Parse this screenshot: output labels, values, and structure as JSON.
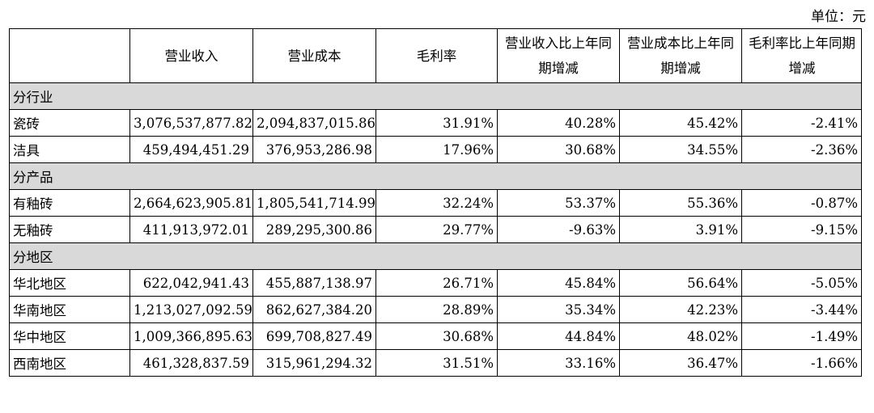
{
  "unit_label": "单位：元",
  "headers": [
    "",
    "营业收入",
    "营业成本",
    "毛利率",
    "营业收入比上年同期增减",
    "营业成本比上年同期增减",
    "毛利率比上年同期增减"
  ],
  "sections": [
    {
      "title": "分行业",
      "rows": [
        {
          "label": "瓷砖",
          "values": [
            "3,076,537,877.82",
            "2,094,837,015.86",
            "31.91%",
            "40.28%",
            "45.42%",
            "-2.41%"
          ]
        },
        {
          "label": "洁具",
          "values": [
            "459,494,451.29",
            "376,953,286.98",
            "17.96%",
            "30.68%",
            "34.55%",
            "-2.36%"
          ]
        }
      ]
    },
    {
      "title": "分产品",
      "rows": [
        {
          "label": "有釉砖",
          "values": [
            "2,664,623,905.81",
            "1,805,541,714.99",
            "32.24%",
            "53.37%",
            "55.36%",
            "-0.87%"
          ]
        },
        {
          "label": "无釉砖",
          "values": [
            "411,913,972.01",
            "289,295,300.86",
            "29.77%",
            "-9.63%",
            "3.91%",
            "-9.15%"
          ]
        }
      ]
    },
    {
      "title": "分地区",
      "rows": [
        {
          "label": "华北地区",
          "values": [
            "622,042,941.43",
            "455,887,138.97",
            "26.71%",
            "45.84%",
            "56.64%",
            "-5.05%"
          ]
        },
        {
          "label": "华南地区",
          "values": [
            "1,213,027,092.59",
            "862,627,384.20",
            "28.89%",
            "35.34%",
            "42.23%",
            "-3.44%"
          ]
        },
        {
          "label": "华中地区",
          "values": [
            "1,009,366,895.63",
            "699,708,827.49",
            "30.68%",
            "44.84%",
            "48.02%",
            "-1.49%"
          ]
        },
        {
          "label": "西南地区",
          "values": [
            "461,328,837.59",
            "315,961,294.32",
            "31.51%",
            "33.16%",
            "36.47%",
            "-1.66%"
          ]
        }
      ]
    }
  ]
}
